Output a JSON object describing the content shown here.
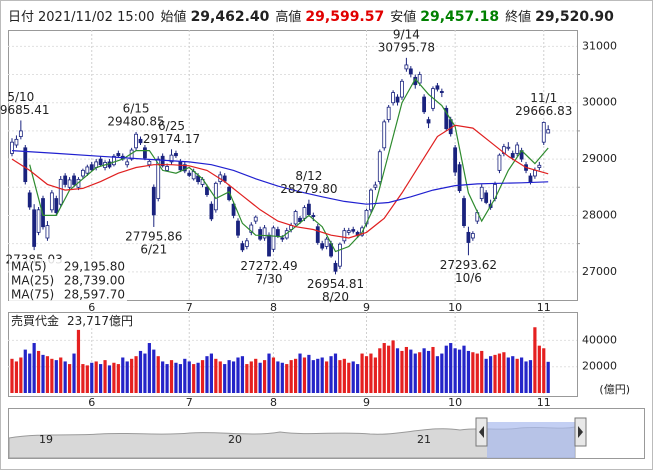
{
  "chart_data": {
    "type": "candlestick",
    "header": [
      {
        "label": "日付",
        "value": "2021/11/02 15:00",
        "color": "#222222"
      },
      {
        "label": "始値",
        "value": "29,462.40",
        "color": "#222222"
      },
      {
        "label": "高値",
        "value": "29,599.57",
        "color": "#e00000"
      },
      {
        "label": "安値",
        "value": "29,457.18",
        "color": "#008000"
      },
      {
        "label": "終値",
        "value": "29,520.90",
        "color": "#222222"
      }
    ],
    "xlim": [
      -0.9,
      127.5
    ],
    "xticks": [
      {
        "value": 18,
        "label": "6"
      },
      {
        "value": 40,
        "label": "7"
      },
      {
        "value": 59,
        "label": "8"
      },
      {
        "value": 80,
        "label": "9"
      },
      {
        "value": 100,
        "label": "10"
      },
      {
        "value": 120,
        "label": "11"
      }
    ],
    "ylim": [
      26500,
      31290
    ],
    "yticks": [
      27000,
      27500,
      28000,
      28500,
      29000,
      29500,
      30000,
      30500,
      31000
    ],
    "grid": true,
    "up_color": "#ffffff",
    "down_color": "#1a237e",
    "outline_color": "#1a237e",
    "candles": {
      "open": [
        29100,
        29250,
        29400,
        29200,
        28400,
        28100,
        27700,
        28300,
        27600,
        28100,
        28300,
        28200,
        28700,
        28500,
        28700,
        28500,
        28700,
        28750,
        28900,
        28850,
        29000,
        28850,
        28950,
        28900,
        29100,
        29050,
        28900,
        29000,
        29200,
        29350,
        29200,
        28900,
        28500,
        28300,
        29050,
        28800,
        28950,
        29100,
        28950,
        28900,
        28750,
        28650,
        28700,
        28550,
        28500,
        28200,
        28100,
        28600,
        28700,
        28500,
        28200,
        27900,
        27500,
        27450,
        27700,
        27900,
        27750,
        27600,
        27650,
        27400,
        27750,
        27600,
        27600,
        27750,
        27850,
        27950,
        27950,
        28200,
        28000,
        27800,
        27500,
        27450,
        27500,
        27150,
        27100,
        27550,
        27700,
        27750,
        27700,
        27650,
        27850,
        28100,
        28500,
        28600,
        29200,
        29700,
        30000,
        30100,
        30100,
        30600,
        30600,
        30450,
        30350,
        30100,
        29700,
        29900,
        30300,
        30200,
        29900,
        29700,
        29200,
        28900,
        28300,
        27700,
        27600,
        27900,
        28300,
        28400,
        28200,
        28300,
        28800,
        29100,
        29200,
        29100,
        29100,
        29150,
        28900,
        28700,
        28700,
        28850,
        29300,
        29462.4
      ],
      "high": [
        29370,
        29420,
        29685.41,
        29250,
        28450,
        28200,
        28150,
        28350,
        27900,
        28450,
        28350,
        28700,
        28750,
        28680,
        28750,
        28680,
        28830,
        28900,
        28950,
        29000,
        29050,
        28980,
        29000,
        29090,
        29150,
        29100,
        29000,
        29200,
        29480.85,
        29400,
        29250,
        29000,
        28550,
        29050,
        29100,
        28920,
        29174.17,
        29150,
        29000,
        28950,
        28800,
        28830,
        28750,
        28680,
        28550,
        28250,
        28600,
        28780,
        28750,
        28550,
        28250,
        27950,
        27550,
        27600,
        27880,
        28000,
        27800,
        27830,
        27700,
        27820,
        27800,
        27650,
        27780,
        27870,
        28100,
        27990,
        28180,
        28279.8,
        28050,
        27850,
        27550,
        27620,
        27550,
        27200,
        27520,
        27780,
        27780,
        27800,
        27730,
        27820,
        28120,
        28480,
        28600,
        29170,
        29700,
        29960,
        30220,
        30150,
        30420,
        30795.78,
        30650,
        30500,
        30550,
        30150,
        29750,
        30290,
        30350,
        30250,
        29950,
        29750,
        29250,
        28950,
        28350,
        27800,
        27720,
        28100,
        28550,
        28450,
        28280,
        28600,
        29100,
        29270,
        29300,
        29150,
        29300,
        29200,
        28950,
        28750,
        28850,
        28950,
        29666.83,
        29599.57
      ],
      "low": [
        29050,
        29200,
        29350,
        28550,
        28100,
        27385.03,
        27650,
        27750,
        27550,
        28050,
        28000,
        28150,
        28500,
        28450,
        28500,
        28450,
        28650,
        28700,
        28780,
        28800,
        28870,
        28800,
        28830,
        28870,
        29020,
        28970,
        28850,
        28970,
        29150,
        29250,
        28980,
        28850,
        27795.86,
        28250,
        28850,
        28780,
        28900,
        29020,
        28770,
        28750,
        28680,
        28620,
        28550,
        28500,
        28330,
        27900,
        28050,
        28550,
        28580,
        28250,
        27950,
        27600,
        27350,
        27400,
        27650,
        27850,
        27550,
        27550,
        27272.49,
        27350,
        27600,
        27530,
        27570,
        27700,
        27820,
        27850,
        27900,
        27980,
        27900,
        27480,
        27380,
        27400,
        27250,
        26954.81,
        27050,
        27500,
        27650,
        27680,
        27600,
        27620,
        27800,
        28050,
        28450,
        28550,
        29150,
        29650,
        29950,
        29950,
        30050,
        30550,
        30450,
        30250,
        30300,
        29800,
        29550,
        29850,
        30200,
        30100,
        29500,
        29400,
        28700,
        28400,
        27780,
        27293.62,
        27550,
        27850,
        28250,
        28200,
        28100,
        28250,
        28750,
        29050,
        29150,
        28980,
        29050,
        28950,
        28750,
        28550,
        28650,
        28800,
        29250,
        29457.18
      ],
      "close": [
        29300,
        29350,
        29500,
        28600,
        28150,
        27450,
        28100,
        27800,
        27820,
        28400,
        28050,
        28640,
        28550,
        28630,
        28550,
        28640,
        28800,
        28860,
        28810,
        28950,
        28900,
        28940,
        28860,
        29050,
        29060,
        29000,
        28950,
        29160,
        29440,
        29290,
        29020,
        28960,
        28010,
        29000,
        28880,
        28870,
        29070,
        29060,
        28810,
        28790,
        28710,
        28780,
        28600,
        28640,
        28370,
        27940,
        28570,
        28720,
        28610,
        28280,
        28000,
        27650,
        27390,
        27550,
        27830,
        27970,
        27580,
        27780,
        27280,
        27780,
        27640,
        27580,
        27730,
        27820,
        28070,
        27890,
        28140,
        28015,
        27980,
        27520,
        27420,
        27580,
        27280,
        27010,
        27490,
        27730,
        27730,
        27720,
        27640,
        27780,
        28090,
        28450,
        28540,
        29130,
        29660,
        29920,
        30180,
        30010,
        30380,
        30670,
        30510,
        30320,
        30500,
        29840,
        29640,
        30250,
        30240,
        30180,
        29540,
        29450,
        28770,
        28440,
        27820,
        27520,
        27680,
        28050,
        28500,
        28230,
        28140,
        28550,
        29070,
        29220,
        29210,
        29030,
        29250,
        29000,
        28800,
        28600,
        28800,
        28890,
        29650,
        29520.9
      ]
    },
    "series": [
      {
        "name": "MA(5)",
        "color": "#2e8b2e",
        "current_label": "29,195.80",
        "x": [
          4,
          7,
          10,
          13,
          16,
          19,
          22,
          25,
          28,
          31,
          34,
          37,
          40,
          43,
          46,
          49,
          52,
          55,
          58,
          61,
          64,
          67,
          70,
          73,
          76,
          79,
          82,
          85,
          88,
          91,
          94,
          97,
          100,
          103,
          106,
          109,
          112,
          115,
          118,
          121
        ],
        "values": [
          28900,
          28000,
          28000,
          28450,
          28650,
          28850,
          28920,
          29000,
          29150,
          29150,
          28800,
          28750,
          28850,
          28650,
          28300,
          28420,
          27860,
          27650,
          27640,
          27620,
          27800,
          28000,
          27800,
          27360,
          27450,
          27700,
          28200,
          29100,
          30000,
          30420,
          30150,
          29950,
          29580,
          28400,
          27900,
          28300,
          28800,
          29150,
          28920,
          29195.8
        ]
      },
      {
        "name": "MA(25)",
        "color": "#e02020",
        "current_label": "28,739.00",
        "x": [
          0,
          4,
          8,
          12,
          16,
          20,
          24,
          28,
          32,
          36,
          40,
          44,
          48,
          52,
          56,
          60,
          64,
          68,
          72,
          76,
          80,
          84,
          88,
          92,
          96,
          100,
          104,
          108,
          112,
          116,
          121
        ],
        "values": [
          29000,
          28800,
          28550,
          28450,
          28480,
          28600,
          28750,
          28850,
          28900,
          28900,
          28880,
          28800,
          28600,
          28350,
          28100,
          27900,
          27800,
          27750,
          27650,
          27600,
          27700,
          27950,
          28400,
          28900,
          29400,
          29600,
          29550,
          29300,
          29050,
          28850,
          28739.0
        ]
      },
      {
        "name": "MA(75)",
        "color": "#2020d0",
        "current_label": "28,597.70",
        "x": [
          0,
          10,
          20,
          30,
          40,
          45,
          50,
          55,
          60,
          65,
          70,
          75,
          80,
          85,
          90,
          95,
          100,
          105,
          110,
          115,
          121
        ],
        "values": [
          29150,
          29100,
          29050,
          29000,
          28950,
          28900,
          28800,
          28650,
          28520,
          28420,
          28330,
          28250,
          28200,
          28230,
          28330,
          28450,
          28530,
          28560,
          28570,
          28580,
          28597.7
        ]
      }
    ],
    "annotations": [
      {
        "x": 2,
        "date": "5/10",
        "text": "29685.41"
      },
      {
        "x": 5,
        "date": "",
        "text": "27385.03"
      },
      {
        "x": 28,
        "date": "6/15",
        "text": "29480.85"
      },
      {
        "x": 32,
        "date": "6/21",
        "text": "27795.86"
      },
      {
        "x": 36,
        "date": "6/25",
        "text": "29174.17"
      },
      {
        "x": 58,
        "date": "7/30",
        "text": "27272.49"
      },
      {
        "x": 67,
        "date": "8/12",
        "text": "28279.80"
      },
      {
        "x": 73,
        "date": "8/20",
        "text": "26954.81"
      },
      {
        "x": 89,
        "date": "9/14",
        "text": "30795.78"
      },
      {
        "x": 103,
        "date": "10/6",
        "text": "27293.62"
      },
      {
        "x": 120,
        "date": "11/1",
        "text": "29666.83"
      }
    ],
    "volume": {
      "title": "売買代金",
      "current_label": "23,717億円",
      "unit": "(億円)",
      "up_color": "#e52020",
      "down_color": "#2424c8",
      "ylim": [
        0,
        61600
      ],
      "yticks": [
        20000,
        40000
      ],
      "values": [
        26000,
        24000,
        27000,
        33000,
        30000,
        38000,
        32000,
        29000,
        28000,
        26000,
        25000,
        27000,
        24000,
        22000,
        30000,
        48000,
        22000,
        21000,
        23000,
        24000,
        22000,
        25000,
        21000,
        23000,
        22000,
        27000,
        24000,
        26000,
        28000,
        32000,
        30000,
        38000,
        33000,
        28000,
        24000,
        22000,
        25000,
        23000,
        22000,
        26000,
        24000,
        22000,
        23000,
        25000,
        28000,
        30000,
        26000,
        24000,
        22000,
        25000,
        24000,
        27000,
        28000,
        22000,
        24000,
        26000,
        23000,
        25000,
        30000,
        27000,
        24000,
        23000,
        22000,
        25000,
        26000,
        30000,
        27000,
        29000,
        25000,
        26000,
        27000,
        24000,
        28000,
        30000,
        25000,
        26000,
        23000,
        24000,
        22000,
        30000,
        28000,
        30000,
        27000,
        34000,
        38000,
        36000,
        40000,
        34000,
        32000,
        35000,
        33000,
        30000,
        31000,
        34000,
        32000,
        35000,
        28000,
        30000,
        36000,
        38000,
        34000,
        33000,
        36000,
        32000,
        31000,
        30000,
        32000,
        26000,
        28000,
        29000,
        30000,
        31000,
        27000,
        28000,
        26000,
        27000,
        24000,
        25000,
        50000,
        36000,
        34000,
        23717
      ]
    },
    "navigator": {
      "labels": [
        "19",
        "20",
        "21"
      ]
    }
  }
}
